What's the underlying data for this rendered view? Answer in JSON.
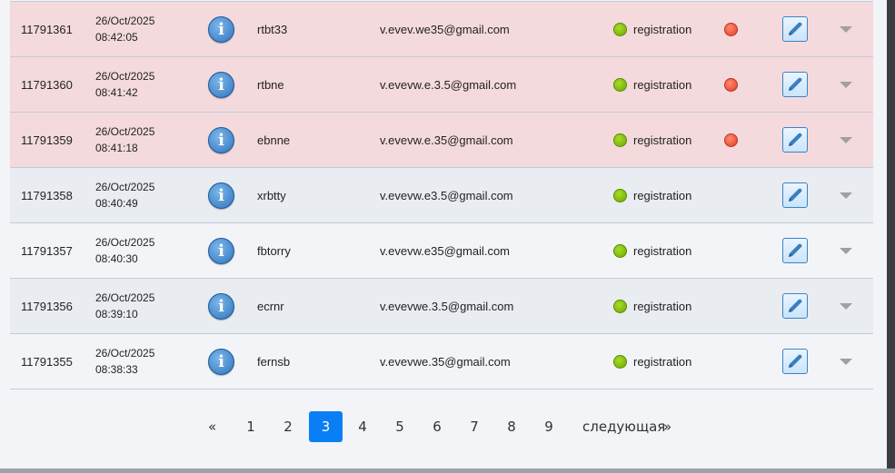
{
  "rows": [
    {
      "id": "11791361",
      "date": "26/Oct/2025",
      "time": "08:42:05",
      "username": "rtbt33",
      "email": "v.evev.we35@gmail.com",
      "status": "registration",
      "flag": true,
      "style": "alert"
    },
    {
      "id": "11791360",
      "date": "26/Oct/2025",
      "time": "08:41:42",
      "username": "rtbne",
      "email": "v.evevw.e.3.5@gmail.com",
      "status": "registration",
      "flag": true,
      "style": "alert"
    },
    {
      "id": "11791359",
      "date": "26/Oct/2025",
      "time": "08:41:18",
      "username": "ebnne",
      "email": "v.evevw.e.35@gmail.com",
      "status": "registration",
      "flag": true,
      "style": "alert"
    },
    {
      "id": "11791358",
      "date": "26/Oct/2025",
      "time": "08:40:49",
      "username": "xrbtty",
      "email": "v.evevw.e3.5@gmail.com",
      "status": "registration",
      "flag": false,
      "style": "alt"
    },
    {
      "id": "11791357",
      "date": "26/Oct/2025",
      "time": "08:40:30",
      "username": "fbtorry",
      "email": "v.evevw.e35@gmail.com",
      "status": "registration",
      "flag": false,
      "style": "plain"
    },
    {
      "id": "11791356",
      "date": "26/Oct/2025",
      "time": "08:39:10",
      "username": "ecrnr",
      "email": "v.evevwe.3.5@gmail.com",
      "status": "registration",
      "flag": false,
      "style": "alt"
    },
    {
      "id": "11791355",
      "date": "26/Oct/2025",
      "time": "08:38:33",
      "username": "fernsb",
      "email": "v.evevwe.35@gmail.com",
      "status": "registration",
      "flag": false,
      "style": "plain"
    }
  ],
  "icons": {
    "info": "info-icon",
    "status": "green-status-dot",
    "flag": "red-flag-dot",
    "edit": "pencil-icon",
    "more": "chevron-down-icon"
  },
  "colors": {
    "alert_row": "#f4dadd",
    "active_page": "#0a7ff5",
    "status_green": "#7ab800",
    "flag_red": "#e63b22"
  },
  "pagination": {
    "prev": "«",
    "pages": [
      "1",
      "2",
      "3",
      "4",
      "5",
      "6",
      "7",
      "8",
      "9"
    ],
    "current": "3",
    "next_label": "следующая",
    "next": "»"
  }
}
